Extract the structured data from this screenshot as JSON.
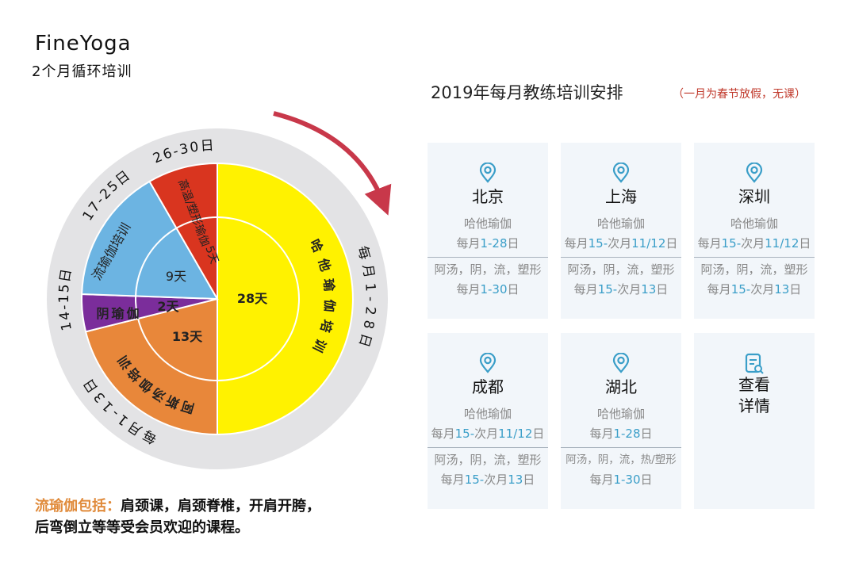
{
  "brand": {
    "name": "FineYoga",
    "subtitle": "2个月循环培训"
  },
  "wheel": {
    "ring_labels": [
      "每月1-28日",
      "每月1-13日",
      "14-15日",
      "17-25日",
      "26-30日"
    ],
    "segments": [
      {
        "name": "哈他瑜伽培训",
        "days": "28天",
        "color": "#fff200"
      },
      {
        "name": "阿斯汤伽培训",
        "days": "13天",
        "color": "#e8873a"
      },
      {
        "name": "阴瑜伽",
        "days": "2天",
        "color": "#7b2d9b"
      },
      {
        "name": "流瑜伽培训",
        "days": "9天",
        "color": "#6cb4e2"
      },
      {
        "name": "高温/塑形瑜伽",
        "days": "5天",
        "color": "#d9351f"
      }
    ]
  },
  "note": {
    "highlight": "流瑜伽包括：",
    "line1": "肩颈课，肩颈脊椎，开肩开胯，",
    "line2": "后弯倒立等等受会员欢迎的课程。"
  },
  "schedule": {
    "title": "2019年每月教练培训安排",
    "title_note": "（一月为春节放假，无课）",
    "cards": [
      {
        "city": "北京",
        "course1": "哈他瑜伽",
        "date1": [
          [
            "每月",
            0
          ],
          [
            "1-28",
            1
          ],
          [
            "日",
            0
          ]
        ],
        "course2": "阿汤，阴，流，塑形",
        "date2": [
          [
            "每月",
            0
          ],
          [
            "1-30",
            1
          ],
          [
            "日",
            0
          ]
        ]
      },
      {
        "city": "上海",
        "course1": "哈他瑜伽",
        "date1": [
          [
            "每月",
            0
          ],
          [
            "15-",
            1
          ],
          [
            "次月",
            0
          ],
          [
            "11/12",
            1
          ],
          [
            "日",
            0
          ]
        ],
        "course2": "阿汤，阴，流，塑形",
        "date2": [
          [
            "每月",
            0
          ],
          [
            "15-",
            1
          ],
          [
            "次月",
            0
          ],
          [
            "13",
            1
          ],
          [
            "日",
            0
          ]
        ]
      },
      {
        "city": "深圳",
        "course1": "哈他瑜伽",
        "date1": [
          [
            "每月",
            0
          ],
          [
            "15-",
            1
          ],
          [
            "次月",
            0
          ],
          [
            "11/12",
            1
          ],
          [
            "日",
            0
          ]
        ],
        "course2": "阿汤，阴，流，塑形",
        "date2": [
          [
            "每月",
            0
          ],
          [
            "15-",
            1
          ],
          [
            "次月",
            0
          ],
          [
            "13",
            1
          ],
          [
            "日",
            0
          ]
        ]
      },
      {
        "city": "成都",
        "course1": "哈他瑜伽",
        "date1": [
          [
            "每月",
            0
          ],
          [
            "15-",
            1
          ],
          [
            "次月",
            0
          ],
          [
            "11/12",
            1
          ],
          [
            "日",
            0
          ]
        ],
        "course2": "阿汤，阴，流，塑形",
        "date2": [
          [
            "每月",
            0
          ],
          [
            "15-",
            1
          ],
          [
            "次月",
            0
          ],
          [
            "13",
            1
          ],
          [
            "日",
            0
          ]
        ]
      },
      {
        "city": "湖北",
        "course1": "哈他瑜伽",
        "date1": [
          [
            "每月",
            0
          ],
          [
            "1-28",
            1
          ],
          [
            "日",
            0
          ]
        ],
        "course2": "阿汤，阴，流，热/塑形",
        "date2": [
          [
            "每月",
            0
          ],
          [
            "1-30",
            1
          ],
          [
            "日",
            0
          ]
        ]
      }
    ],
    "detail": {
      "line1": "查看",
      "line2": "详情"
    }
  },
  "colors": {
    "accent": "#3a9ec8",
    "ring": "#e3e3e5",
    "arrow": "#c8384a",
    "card_bg": "#f2f6fa"
  }
}
